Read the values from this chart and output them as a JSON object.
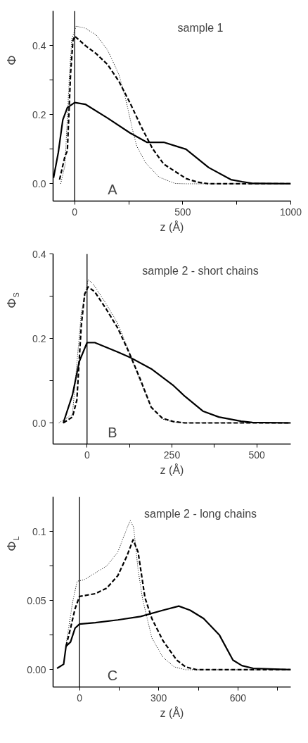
{
  "chart_data": [
    {
      "type": "line",
      "ylabel": "Φ",
      "xlabel": "z (Å)",
      "annotations": [
        "sample 1",
        "A"
      ],
      "xlim": [
        -100,
        1000
      ],
      "ylim": [
        -0.05,
        0.5
      ],
      "xticks": [
        0,
        {
          "value": 250,
          "label": null
        },
        500,
        {
          "value": 750,
          "label": null
        },
        1000
      ],
      "yticks": [
        {
          "value": 0,
          "label": "0.0"
        },
        {
          "value": 0.1,
          "label": null
        },
        0.2,
        {
          "value": 0.3,
          "label": null
        },
        0.4
      ],
      "grid": false,
      "marker": "none",
      "ref_lines": [
        {
          "axis": "x",
          "value": 0
        }
      ],
      "series": [
        {
          "color": "#000000",
          "line_style": "solid",
          "x": [
            -98,
            -76,
            -55,
            -34,
            0,
            49,
            152,
            256,
            334,
            412,
            515,
            620,
            723,
            775,
            827,
            1000
          ],
          "values": [
            0.017,
            0.09,
            0.185,
            0.22,
            0.235,
            0.23,
            0.19,
            0.147,
            0.12,
            0.12,
            0.1,
            0.047,
            0.012,
            0.006,
            0.001,
            0
          ]
        },
        {
          "color": "#000000",
          "line_style": "dashed",
          "x": [
            -70,
            -45,
            -34,
            -19,
            -8,
            0,
            49,
            100,
            152,
            204,
            256,
            308,
            360,
            412,
            464,
            516,
            567,
            619,
            1000
          ],
          "values": [
            0.012,
            0.08,
            0.095,
            0.32,
            0.415,
            0.427,
            0.4,
            0.376,
            0.345,
            0.297,
            0.234,
            0.165,
            0.102,
            0.057,
            0.036,
            0.015,
            0.005,
            0,
            0
          ]
        },
        {
          "color": "#000000",
          "line_style": "dotted",
          "x": [
            -65,
            -45,
            -24,
            -13,
            7,
            49,
            100,
            152,
            204,
            235,
            267,
            287,
            329,
            391,
            464,
            516,
            1000
          ],
          "values": [
            0,
            0.053,
            0.32,
            0.42,
            0.456,
            0.45,
            0.43,
            0.387,
            0.317,
            0.248,
            0.158,
            0.109,
            0.06,
            0.019,
            0.001,
            0,
            0
          ]
        }
      ]
    },
    {
      "type": "line",
      "ylabel": "Φ$_{S}$",
      "xlabel": "z (Å)",
      "annotations": [
        "sample 2 - short chains",
        "B"
      ],
      "xlim": [
        -100,
        600
      ],
      "ylim": [
        -0.05,
        0.4
      ],
      "xticks": [
        0,
        {
          "value": 125,
          "label": null
        },
        250,
        {
          "value": 375,
          "label": null
        },
        500
      ],
      "yticks": [
        {
          "value": 0,
          "label": "0.0"
        },
        {
          "value": 0.1,
          "label": null
        },
        0.2,
        {
          "value": 0.3,
          "label": null
        },
        0.4
      ],
      "grid": false,
      "marker": "none",
      "ref_lines": [
        {
          "axis": "x",
          "value": 0
        }
      ],
      "series": [
        {
          "color": "#000000",
          "line_style": "solid",
          "x": [
            -70,
            -43,
            -23,
            0,
            23,
            90,
            129,
            189,
            255,
            288,
            341,
            388,
            454,
            487,
            600
          ],
          "values": [
            0,
            0.066,
            0.145,
            0.19,
            0.19,
            0.168,
            0.154,
            0.128,
            0.088,
            0.063,
            0.028,
            0.014,
            0.004,
            0.001,
            0
          ]
        },
        {
          "color": "#000000",
          "line_style": "dashed",
          "x": [
            -70,
            -43,
            -30,
            -17,
            -7,
            3,
            23,
            56,
            90,
            123,
            156,
            189,
            222,
            255,
            288,
            600
          ],
          "values": [
            0,
            0.014,
            0.054,
            0.23,
            0.305,
            0.322,
            0.31,
            0.27,
            0.225,
            0.168,
            0.105,
            0.037,
            0.011,
            0.003,
            0,
            0
          ]
        },
        {
          "color": "#000000",
          "line_style": "dotted",
          "x": [
            -83,
            -43,
            -17,
            3,
            17,
            56,
            90,
            123,
            156,
            189,
            222,
            255,
            288,
            600
          ],
          "values": [
            0,
            0.02,
            0.26,
            0.339,
            0.33,
            0.282,
            0.236,
            0.171,
            0.1,
            0.037,
            0.009,
            0.002,
            0,
            0
          ]
        }
      ]
    },
    {
      "type": "line",
      "ylabel": "Φ$_{L}$",
      "xlabel": "z (Å)",
      "annotations": [
        "sample 2 - long chains",
        "C"
      ],
      "xlim": [
        -100,
        800
      ],
      "ylim": [
        -0.0125,
        0.125
      ],
      "xticks": [
        0,
        {
          "value": 150,
          "label": null
        },
        300,
        {
          "value": 450,
          "label": null
        },
        600,
        {
          "value": 750,
          "label": null
        }
      ],
      "yticks": [
        {
          "value": 0,
          "label": "0.00"
        },
        {
          "value": 0.025,
          "label": null
        },
        0.05,
        {
          "value": 0.075,
          "label": null
        },
        0.1
      ],
      "grid": false,
      "marker": "none",
      "ref_lines": [
        {
          "axis": "x",
          "value": 0
        }
      ],
      "series": [
        {
          "color": "#000000",
          "line_style": "solid",
          "x": [
            -85,
            -60,
            -51,
            -34,
            -17,
            0,
            60,
            145,
            231,
            316,
            376,
            419,
            470,
            530,
            581,
            615,
            658,
            800
          ],
          "values": [
            0.001,
            0.004,
            0.017,
            0.02,
            0.03,
            0.033,
            0.034,
            0.036,
            0.0385,
            0.043,
            0.046,
            0.043,
            0.037,
            0.025,
            0.007,
            0.003,
            0.001,
            0
          ]
        },
        {
          "color": "#000000",
          "line_style": "dashed",
          "x": [
            -51,
            -34,
            -17,
            0,
            60,
            103,
            145,
            179,
            203,
            222,
            248,
            274,
            316,
            368,
            402,
            444,
            800
          ],
          "values": [
            0.017,
            0.03,
            0.044,
            0.053,
            0.055,
            0.059,
            0.068,
            0.082,
            0.094,
            0.085,
            0.052,
            0.037,
            0.021,
            0.007,
            0.002,
            0,
            0
          ]
        },
        {
          "color": "#000000",
          "line_style": "dotted",
          "x": [
            -51,
            -26,
            -9,
            17,
            103,
            145,
            171,
            192,
            205,
            222,
            239,
            274,
            316,
            359,
            402,
            800
          ],
          "values": [
            0.018,
            0.049,
            0.064,
            0.065,
            0.075,
            0.085,
            0.098,
            0.108,
            0.103,
            0.072,
            0.051,
            0.023,
            0.009,
            0.002,
            0,
            0
          ]
        }
      ]
    }
  ]
}
